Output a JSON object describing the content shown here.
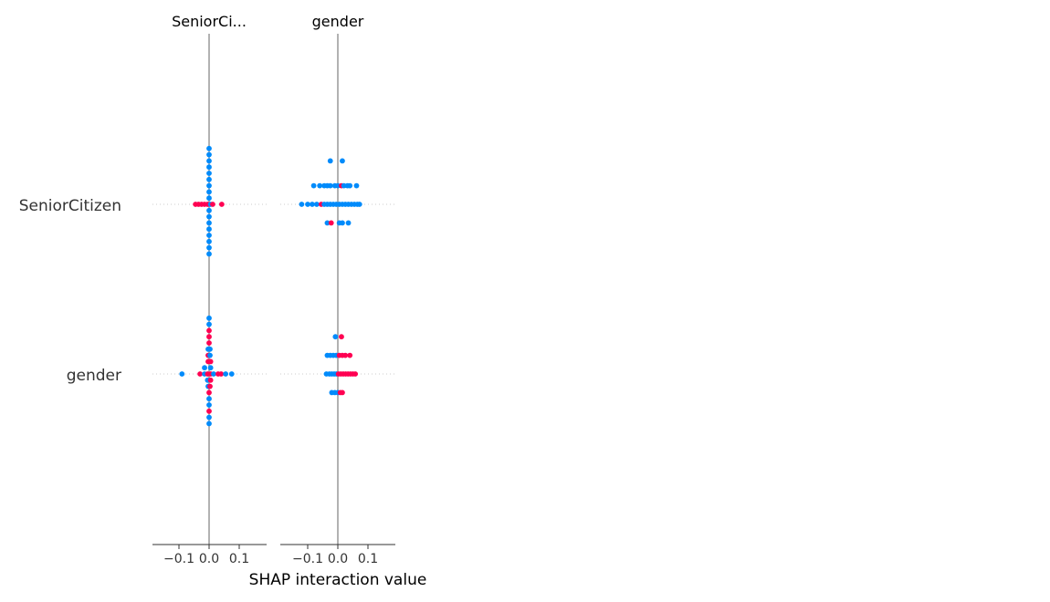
{
  "colors": {
    "low": "#008bfb",
    "high": "#ff0052",
    "zero_line": "#999999",
    "axis": "#333333",
    "guide": "#cccccc"
  },
  "chart_data": {
    "type": "scatter",
    "subtype": "shap_interaction_beeswarm",
    "xlabel": "SHAP interaction value",
    "xlim": [
      -0.18,
      0.18
    ],
    "xticks": [
      -0.1,
      0.0,
      0.1
    ],
    "xtick_labels": [
      "−0.1",
      "0.0",
      "0.1"
    ],
    "features": [
      "SeniorCitizen",
      "gender"
    ],
    "panels": [
      {
        "title": "SeniorCi...",
        "rows": [
          {
            "feature": "SeniorCitizen",
            "points": [
              {
                "x": 0.0,
                "stack": -9,
                "c": "low"
              },
              {
                "x": 0.0,
                "stack": -8,
                "c": "low"
              },
              {
                "x": 0.0,
                "stack": -7,
                "c": "low"
              },
              {
                "x": 0.0,
                "stack": -6,
                "c": "low"
              },
              {
                "x": 0.0,
                "stack": -5,
                "c": "low"
              },
              {
                "x": 0.0,
                "stack": -4,
                "c": "low"
              },
              {
                "x": 0.0,
                "stack": -3,
                "c": "low"
              },
              {
                "x": 0.0,
                "stack": -2,
                "c": "low"
              },
              {
                "x": 0.0,
                "stack": -1,
                "c": "low"
              },
              {
                "x": -0.045,
                "stack": 0,
                "c": "high"
              },
              {
                "x": -0.035,
                "stack": 0,
                "c": "high"
              },
              {
                "x": -0.025,
                "stack": 0,
                "c": "high"
              },
              {
                "x": -0.015,
                "stack": 0,
                "c": "high"
              },
              {
                "x": -0.005,
                "stack": 0,
                "c": "high"
              },
              {
                "x": 0.005,
                "stack": 0,
                "c": "low"
              },
              {
                "x": 0.012,
                "stack": 0,
                "c": "high"
              },
              {
                "x": 0.042,
                "stack": 0,
                "c": "high"
              },
              {
                "x": 0.0,
                "stack": 1,
                "c": "low"
              },
              {
                "x": 0.0,
                "stack": 2,
                "c": "low"
              },
              {
                "x": 0.0,
                "stack": 3,
                "c": "low"
              },
              {
                "x": 0.0,
                "stack": 4,
                "c": "low"
              },
              {
                "x": 0.0,
                "stack": 5,
                "c": "low"
              },
              {
                "x": 0.0,
                "stack": 6,
                "c": "low"
              },
              {
                "x": 0.0,
                "stack": 7,
                "c": "low"
              },
              {
                "x": 0.0,
                "stack": 8,
                "c": "low"
              }
            ]
          },
          {
            "feature": "gender",
            "points": [
              {
                "x": 0.0,
                "stack": -9,
                "c": "low"
              },
              {
                "x": 0.0,
                "stack": -8,
                "c": "low"
              },
              {
                "x": 0.0,
                "stack": -7,
                "c": "high"
              },
              {
                "x": 0.0,
                "stack": -6,
                "c": "high"
              },
              {
                "x": 0.0,
                "stack": -5,
                "c": "high"
              },
              {
                "x": -0.003,
                "stack": -4,
                "c": "low"
              },
              {
                "x": 0.003,
                "stack": -4,
                "c": "low"
              },
              {
                "x": -0.003,
                "stack": -3,
                "c": "high"
              },
              {
                "x": 0.003,
                "stack": -3,
                "c": "low"
              },
              {
                "x": -0.003,
                "stack": -2,
                "c": "high"
              },
              {
                "x": 0.005,
                "stack": -2,
                "c": "high"
              },
              {
                "x": -0.015,
                "stack": -1,
                "c": "low"
              },
              {
                "x": 0.005,
                "stack": -1,
                "c": "low"
              },
              {
                "x": -0.09,
                "stack": 0,
                "c": "low"
              },
              {
                "x": -0.03,
                "stack": 0,
                "c": "high"
              },
              {
                "x": -0.015,
                "stack": 0,
                "c": "low"
              },
              {
                "x": -0.005,
                "stack": 0,
                "c": "high"
              },
              {
                "x": 0.005,
                "stack": 0,
                "c": "high"
              },
              {
                "x": 0.015,
                "stack": 0,
                "c": "low"
              },
              {
                "x": 0.03,
                "stack": 0,
                "c": "high"
              },
              {
                "x": 0.04,
                "stack": 0,
                "c": "high"
              },
              {
                "x": 0.055,
                "stack": 0,
                "c": "low"
              },
              {
                "x": 0.075,
                "stack": 0,
                "c": "low"
              },
              {
                "x": -0.005,
                "stack": 1,
                "c": "low"
              },
              {
                "x": 0.005,
                "stack": 1,
                "c": "high"
              },
              {
                "x": -0.003,
                "stack": 2,
                "c": "low"
              },
              {
                "x": 0.003,
                "stack": 2,
                "c": "high"
              },
              {
                "x": 0.0,
                "stack": 3,
                "c": "high"
              },
              {
                "x": 0.0,
                "stack": 4,
                "c": "low"
              },
              {
                "x": 0.0,
                "stack": 5,
                "c": "low"
              },
              {
                "x": 0.0,
                "stack": 6,
                "c": "high"
              },
              {
                "x": 0.0,
                "stack": 7,
                "c": "low"
              },
              {
                "x": 0.0,
                "stack": 8,
                "c": "low"
              }
            ]
          }
        ]
      },
      {
        "title": "gender",
        "rows": [
          {
            "feature": "SeniorCitizen",
            "points": [
              {
                "x": -0.025,
                "stack": -7,
                "c": "low"
              },
              {
                "x": 0.015,
                "stack": -7,
                "c": "low"
              },
              {
                "x": -0.08,
                "stack": -3,
                "c": "low"
              },
              {
                "x": -0.06,
                "stack": -3,
                "c": "low"
              },
              {
                "x": -0.045,
                "stack": -3,
                "c": "low"
              },
              {
                "x": -0.035,
                "stack": -3,
                "c": "low"
              },
              {
                "x": -0.025,
                "stack": -3,
                "c": "low"
              },
              {
                "x": -0.01,
                "stack": -3,
                "c": "low"
              },
              {
                "x": 0.0,
                "stack": -3,
                "c": "low"
              },
              {
                "x": 0.012,
                "stack": -3,
                "c": "high"
              },
              {
                "x": 0.02,
                "stack": -3,
                "c": "low"
              },
              {
                "x": 0.032,
                "stack": -3,
                "c": "low"
              },
              {
                "x": 0.04,
                "stack": -3,
                "c": "low"
              },
              {
                "x": 0.062,
                "stack": -3,
                "c": "low"
              },
              {
                "x": -0.12,
                "stack": 0,
                "c": "low"
              },
              {
                "x": -0.1,
                "stack": 0,
                "c": "low"
              },
              {
                "x": -0.085,
                "stack": 0,
                "c": "low"
              },
              {
                "x": -0.07,
                "stack": 0,
                "c": "low"
              },
              {
                "x": -0.055,
                "stack": 0,
                "c": "high"
              },
              {
                "x": -0.045,
                "stack": 0,
                "c": "low"
              },
              {
                "x": -0.035,
                "stack": 0,
                "c": "low"
              },
              {
                "x": -0.025,
                "stack": 0,
                "c": "low"
              },
              {
                "x": -0.015,
                "stack": 0,
                "c": "low"
              },
              {
                "x": -0.005,
                "stack": 0,
                "c": "low"
              },
              {
                "x": 0.005,
                "stack": 0,
                "c": "low"
              },
              {
                "x": 0.015,
                "stack": 0,
                "c": "low"
              },
              {
                "x": 0.025,
                "stack": 0,
                "c": "low"
              },
              {
                "x": 0.035,
                "stack": 0,
                "c": "low"
              },
              {
                "x": 0.045,
                "stack": 0,
                "c": "low"
              },
              {
                "x": 0.055,
                "stack": 0,
                "c": "low"
              },
              {
                "x": 0.065,
                "stack": 0,
                "c": "low"
              },
              {
                "x": 0.072,
                "stack": 0,
                "c": "low"
              },
              {
                "x": -0.035,
                "stack": 3,
                "c": "low"
              },
              {
                "x": -0.022,
                "stack": 3,
                "c": "high"
              },
              {
                "x": 0.005,
                "stack": 3,
                "c": "low"
              },
              {
                "x": 0.015,
                "stack": 3,
                "c": "low"
              },
              {
                "x": 0.035,
                "stack": 3,
                "c": "low"
              }
            ]
          },
          {
            "feature": "gender",
            "points": [
              {
                "x": -0.008,
                "stack": -6,
                "c": "low"
              },
              {
                "x": 0.012,
                "stack": -6,
                "c": "high"
              },
              {
                "x": -0.035,
                "stack": -3,
                "c": "low"
              },
              {
                "x": -0.025,
                "stack": -3,
                "c": "low"
              },
              {
                "x": -0.015,
                "stack": -3,
                "c": "low"
              },
              {
                "x": -0.005,
                "stack": -3,
                "c": "low"
              },
              {
                "x": 0.005,
                "stack": -3,
                "c": "high"
              },
              {
                "x": 0.015,
                "stack": -3,
                "c": "high"
              },
              {
                "x": 0.025,
                "stack": -3,
                "c": "high"
              },
              {
                "x": 0.04,
                "stack": -3,
                "c": "high"
              },
              {
                "x": -0.038,
                "stack": 0,
                "c": "low"
              },
              {
                "x": -0.028,
                "stack": 0,
                "c": "low"
              },
              {
                "x": -0.02,
                "stack": 0,
                "c": "low"
              },
              {
                "x": -0.012,
                "stack": 0,
                "c": "low"
              },
              {
                "x": -0.005,
                "stack": 0,
                "c": "low"
              },
              {
                "x": 0.002,
                "stack": 0,
                "c": "high"
              },
              {
                "x": 0.01,
                "stack": 0,
                "c": "high"
              },
              {
                "x": 0.018,
                "stack": 0,
                "c": "high"
              },
              {
                "x": 0.026,
                "stack": 0,
                "c": "high"
              },
              {
                "x": 0.034,
                "stack": 0,
                "c": "high"
              },
              {
                "x": 0.042,
                "stack": 0,
                "c": "high"
              },
              {
                "x": 0.05,
                "stack": 0,
                "c": "high"
              },
              {
                "x": 0.058,
                "stack": 0,
                "c": "high"
              },
              {
                "x": -0.02,
                "stack": 3,
                "c": "low"
              },
              {
                "x": -0.01,
                "stack": 3,
                "c": "low"
              },
              {
                "x": 0.0,
                "stack": 3,
                "c": "low"
              },
              {
                "x": 0.008,
                "stack": 3,
                "c": "high"
              },
              {
                "x": 0.015,
                "stack": 3,
                "c": "high"
              }
            ]
          }
        ]
      }
    ]
  }
}
